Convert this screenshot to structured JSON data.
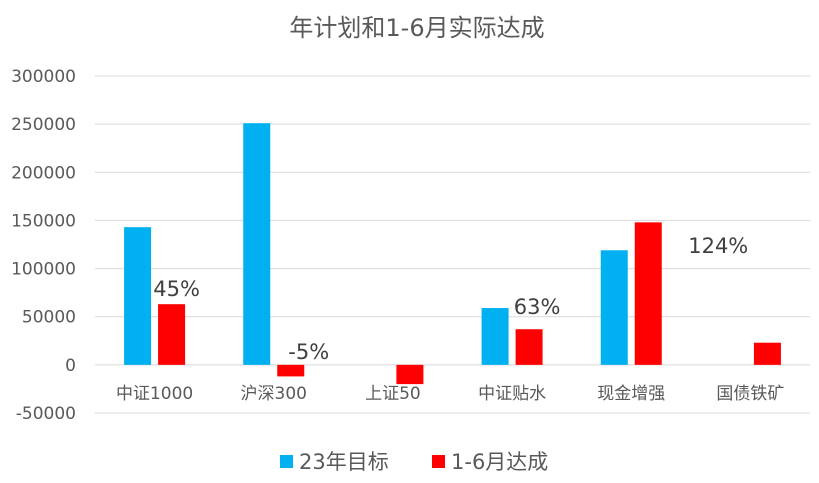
{
  "chart_data": {
    "type": "bar",
    "title": "年计划和1-6月实际达成",
    "categories": [
      "中证1000",
      "沪深300",
      "上证50",
      "中证贴水",
      "现金增强",
      "国债铁矿"
    ],
    "series": [
      {
        "name": "23年目标",
        "color": "#00b0f0",
        "values": [
          143000,
          251000,
          0,
          59000,
          119000,
          0
        ]
      },
      {
        "name": "1-6月达成",
        "color": "#ff0000",
        "values": [
          63000,
          -12000,
          -20000,
          37000,
          148000,
          23000
        ]
      }
    ],
    "ylim": [
      -50000,
      300000
    ],
    "yticks": [
      300000,
      250000,
      200000,
      150000,
      100000,
      50000,
      0,
      -50000
    ],
    "ytick_labels": [
      "300000",
      "250000",
      "200000",
      "150000",
      "100000",
      "50000",
      "0",
      "-50000"
    ],
    "grid": true,
    "legend_position": "bottom",
    "annotations": [
      {
        "text": "45%",
        "category": "中证1000"
      },
      {
        "text": "-5%",
        "category": "沪深300"
      },
      {
        "text": "63%",
        "category": "中证贴水"
      },
      {
        "text": "124%",
        "category": "现金增强"
      }
    ]
  }
}
